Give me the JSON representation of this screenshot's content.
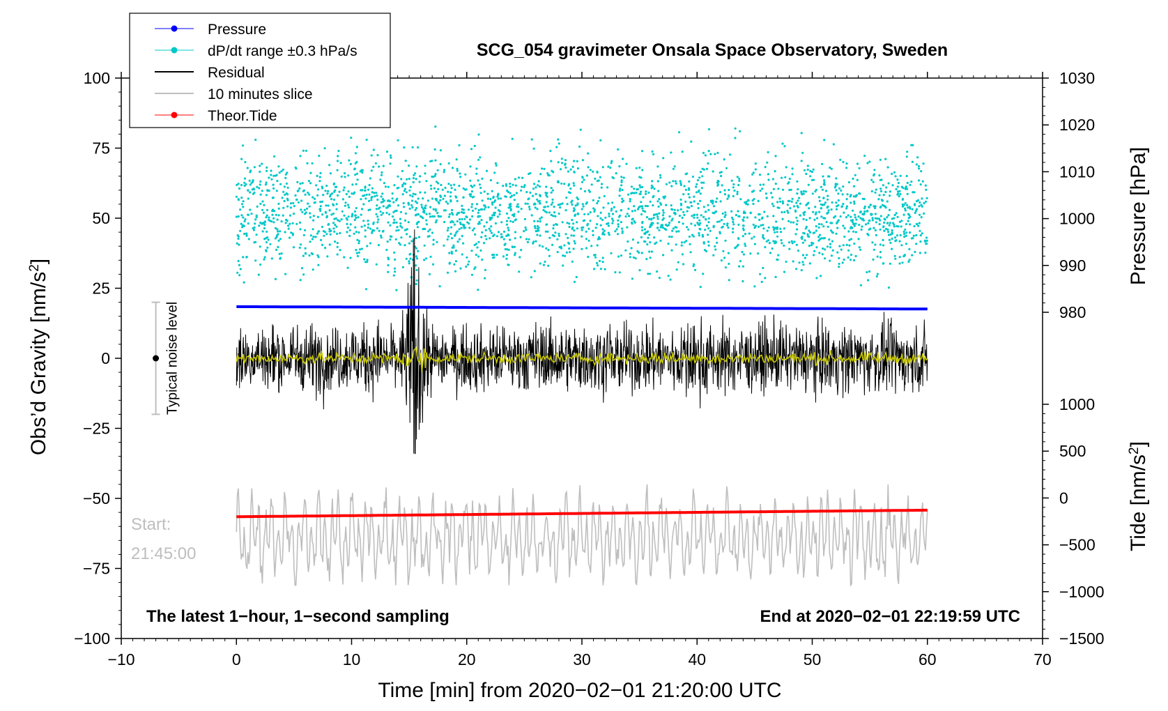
{
  "chart_data": {
    "type": "line",
    "title": "SCG_054 gravimeter Onsala Space Observatory, Sweden",
    "xlabel": "Time [min] from 2020−02−01 21:20:00 UTC",
    "ylabel_main": "Obs’d Gravity [nm/s",
    "ylabel_main_sup": "2",
    "ylabel_main_end": "]",
    "ylabel_pressure": "Pressure [hPa]",
    "ylabel_tide": "Tide [nm/s",
    "ylabel_tide_sup": "2",
    "ylabel_tide_end": "]",
    "xlim": [
      -10,
      70
    ],
    "ylim": [
      -100,
      100
    ],
    "x_ticks": [
      "−10",
      "0",
      "10",
      "20",
      "30",
      "40",
      "50",
      "60",
      "70"
    ],
    "x_tick_values": [
      -10,
      0,
      10,
      20,
      30,
      40,
      50,
      60,
      70
    ],
    "y_ticks": [
      "100",
      "75",
      "50",
      "25",
      "0",
      "−25",
      "−50",
      "−75",
      "−100"
    ],
    "y_tick_values": [
      100,
      75,
      50,
      25,
      0,
      -25,
      -50,
      -75,
      -100
    ],
    "pressure_axis": {
      "range_hpa": [
        980,
        1030
      ],
      "ticks": [
        "1030",
        "1020",
        "1010",
        "1000",
        "990",
        "980"
      ],
      "tick_values": [
        1030,
        1020,
        1010,
        1000,
        990,
        980
      ]
    },
    "tide_axis": {
      "range": [
        -1500,
        1000
      ],
      "ticks": [
        "1000",
        "500",
        "0",
        "−500",
        "−1000",
        "−1500"
      ],
      "tick_values": [
        1000,
        500,
        0,
        -500,
        -1000,
        -1500
      ]
    },
    "legend": {
      "placement": "top-left",
      "entries": [
        {
          "label": "Pressure",
          "color": "#0000ff",
          "marker": "dot"
        },
        {
          "label": "dP/dt range ±0.3 hPa/s",
          "color": "#00c8c8",
          "marker": "dot"
        },
        {
          "label": "Residual",
          "color": "#000000",
          "marker": "line"
        },
        {
          "label": "10 minutes slice",
          "color": "#bebebe",
          "marker": "line"
        },
        {
          "label": "Theor.Tide",
          "color": "#ff0000",
          "marker": "dot"
        }
      ]
    },
    "series": [
      {
        "name": "Pressure",
        "axis": "pressure",
        "color": "#0000ff",
        "x_range": [
          0,
          60
        ],
        "start": 981.2,
        "end": 980.7
      },
      {
        "name": "dP/dt range ±0.3 hPa/s",
        "axis": "main",
        "color": "#00c8c8",
        "x_range": [
          0,
          60
        ],
        "center": 52,
        "spread": 25
      },
      {
        "name": "Residual",
        "axis": "main",
        "color": "#000000",
        "x_range": [
          0,
          60
        ],
        "typical_amplitude": 12,
        "burst_at_min": 15.5,
        "burst_max": 46,
        "burst_min": -34
      },
      {
        "name": "Residual (smoothed)",
        "axis": "main",
        "color": "#c8c800",
        "x_range": [
          0,
          60
        ],
        "typical_amplitude": 2
      },
      {
        "name": "10 minutes slice",
        "axis": "main",
        "color": "#bebebe",
        "x_range": [
          0,
          60
        ],
        "center": -64,
        "amplitude": 16
      },
      {
        "name": "Theor.Tide",
        "axis": "tide",
        "color": "#ff0000",
        "x_range": [
          0,
          60
        ],
        "start": -200,
        "end": -130
      }
    ],
    "noise_bar": {
      "label": "Typical noise level",
      "x": -7,
      "center": 0,
      "half_range": 20
    },
    "annotations": {
      "start_label": "Start:",
      "start_time": "21:45:00",
      "bottom_left": "The latest 1−hour, 1−second sampling",
      "bottom_right": "End at 2020−02−01 22:19:59 UTC"
    },
    "colors": {
      "pressure": "#0000ff",
      "dpdt": "#00c8c8",
      "residual": "#000000",
      "smooth": "#c8c800",
      "slice": "#bebebe",
      "tide": "#ff0000",
      "noise_bar": "#bebebe"
    }
  }
}
